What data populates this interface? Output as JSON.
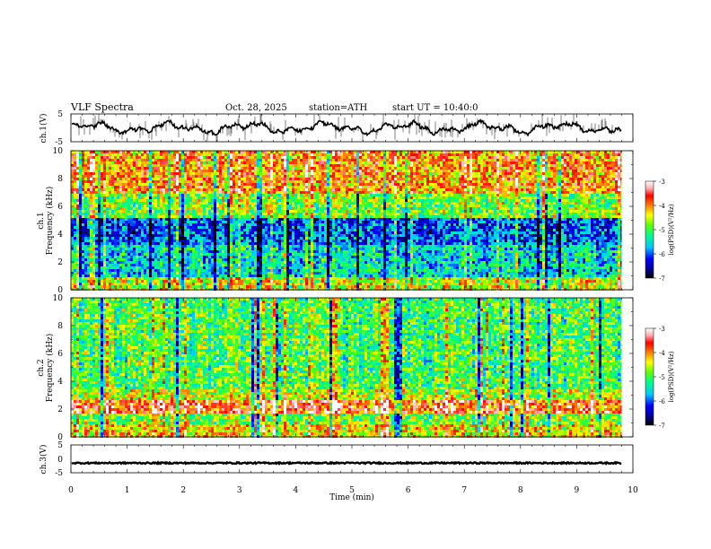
{
  "header": {
    "title": "VLF  Spectra",
    "date": "Oct. 28, 2025",
    "station": "station=ATH",
    "start": "start  UT  =    10:40:0"
  },
  "colors": {
    "trace": "#000000",
    "colormap": [
      "#000000",
      "#0000a0",
      "#0000ff",
      "#00c8ff",
      "#00ff80",
      "#60ff00",
      "#ffff00",
      "#ff8000",
      "#ff0000",
      "#ffb0b0",
      "#ffffff"
    ]
  },
  "chart_data": [
    {
      "type": "line",
      "ylabel": "ch.1(V)",
      "ylim": [
        -5,
        5
      ],
      "ytick_labels": [
        "5",
        "-5"
      ],
      "xlim": [
        0,
        10
      ],
      "baseline": 0,
      "description_series": "fluctuating voltage around 0 V, spanning approximately -4 to 4 V"
    },
    {
      "type": "heatmap",
      "ylabel": "ch.1\nFrequency (kHz)",
      "ylim": [
        0,
        10
      ],
      "ytick_labels": [
        "0",
        "2",
        "4",
        "6",
        "8",
        "10"
      ],
      "xlim": [
        0,
        10
      ],
      "colorbar": {
        "label": "log(PSD)(V²/Hz)",
        "range": [
          -7,
          -3
        ],
        "tick_labels": [
          "-3",
          "-4",
          "-5",
          "-6",
          "-7"
        ]
      },
      "bands_kHz": [
        {
          "from": 0,
          "to": 1.0,
          "level": -4.5
        },
        {
          "from": 1.0,
          "to": 3.2,
          "level": -5.5
        },
        {
          "from": 3.2,
          "to": 5.2,
          "level": -6.0
        },
        {
          "from": 5.2,
          "to": 7.0,
          "level": -4.8
        },
        {
          "from": 7.0,
          "to": 10,
          "level": -4.0
        }
      ]
    },
    {
      "type": "heatmap",
      "ylabel": "ch.2\nFrequency (kHz)",
      "ylim": [
        0,
        10
      ],
      "ytick_labels": [
        "0",
        "2",
        "4",
        "6",
        "8",
        "10"
      ],
      "xlim": [
        0,
        10
      ],
      "colorbar": {
        "label": "log(PSD)(V²/Hz)",
        "range": [
          -7,
          -3
        ],
        "tick_labels": [
          "-3",
          "-4",
          "-5",
          "-6",
          "-7"
        ]
      },
      "bands_kHz": [
        {
          "from": 0,
          "to": 1.0,
          "level": -4.3
        },
        {
          "from": 1.0,
          "to": 1.6,
          "level": -4.8
        },
        {
          "from": 1.6,
          "to": 2.6,
          "level": -3.7
        },
        {
          "from": 2.6,
          "to": 3.5,
          "level": -4.6
        },
        {
          "from": 3.5,
          "to": 10,
          "level": -5.0
        }
      ]
    },
    {
      "type": "line",
      "ylabel": "ch.3(V)",
      "ylim": [
        -5,
        5
      ],
      "ytick_labels": [
        "5",
        "0",
        "-5"
      ],
      "xlim": [
        0,
        10
      ],
      "baseline": -1.5,
      "xlabel": "Time  (min)",
      "xtick_labels": [
        "0",
        "1",
        "2",
        "3",
        "4",
        "5",
        "6",
        "7",
        "8",
        "9",
        "10"
      ],
      "data_end_min": 9.8
    }
  ]
}
